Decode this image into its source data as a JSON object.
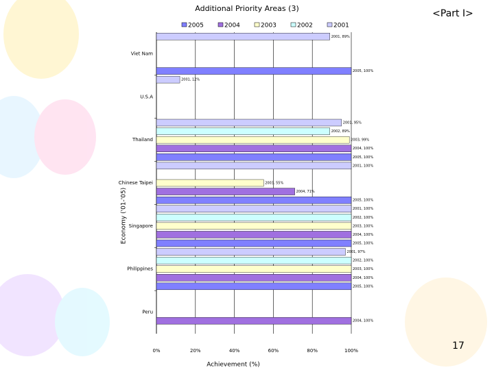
{
  "chart_data": {
    "type": "hbar",
    "title": "Additional Priority Areas (3)",
    "part_label": "<Part I>",
    "page_number": "17",
    "xlabel": "Achievement (%)",
    "ylabel": "Economy ('01-'05)",
    "categories": [
      "Viet Nam",
      "U.S.A",
      "Thailand",
      "Chinese Taipei",
      "Singapore",
      "Philippines",
      "Peru"
    ],
    "series": [
      {
        "name": "2005",
        "color": "#8080ff",
        "values": [
          100,
          null,
          100,
          100,
          100,
          100,
          null
        ],
        "value_labels": [
          "2005, 100%",
          null,
          "2005, 100%",
          "2005, 100%",
          "2005, 100%",
          "2005, 100%",
          null
        ]
      },
      {
        "name": "2004",
        "color": "#a070e0",
        "values": [
          null,
          null,
          100,
          71,
          100,
          100,
          100
        ],
        "value_labels": [
          null,
          null,
          "2004, 100%",
          "2004, 71%",
          "2004, 100%",
          "2004, 100%",
          "2004, 100%"
        ]
      },
      {
        "name": "2003",
        "color": "#ffffcc",
        "values": [
          null,
          null,
          99,
          55,
          100,
          100,
          null
        ],
        "value_labels": [
          null,
          null,
          "2003, 99%",
          "2003, 55%",
          "2003, 100%",
          "2003, 100%",
          null
        ]
      },
      {
        "name": "2002",
        "color": "#ccffff",
        "values": [
          null,
          null,
          89,
          null,
          100,
          100,
          null
        ],
        "value_labels": [
          null,
          null,
          "2002, 89%",
          null,
          "2002, 100%",
          "2002, 100%",
          null
        ]
      },
      {
        "name": "2001",
        "color": "#ccccff",
        "values": [
          89,
          12,
          95,
          100,
          100,
          97,
          null
        ],
        "value_labels": [
          "2001, 89%",
          "2001, 12%",
          "2001, 95%",
          "2001, 100%",
          "2001, 100%",
          "2001, 97%",
          null
        ]
      }
    ],
    "xlim": [
      0,
      100
    ],
    "xticks": [
      {
        "value": 0,
        "label": "0%"
      },
      {
        "value": 20,
        "label": "20%"
      },
      {
        "value": 40,
        "label": "40%"
      },
      {
        "value": 60,
        "label": "60%"
      },
      {
        "value": 80,
        "label": "80%"
      },
      {
        "value": 100,
        "label": "100%"
      }
    ],
    "grid": true
  }
}
